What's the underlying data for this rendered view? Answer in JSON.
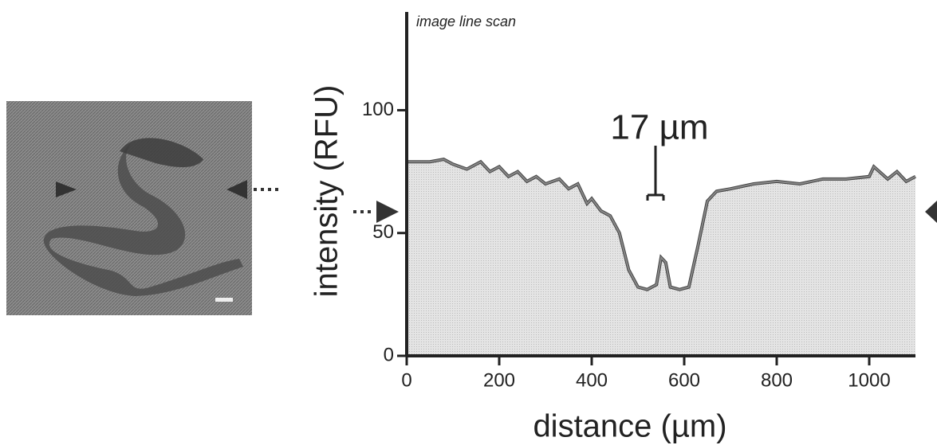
{
  "chart_data": {
    "type": "area",
    "title": "image line scan",
    "annotation": "17 µm",
    "x_label": "distance (µm)",
    "y_label": "intensity (RFU)",
    "x": [
      0,
      50,
      80,
      100,
      130,
      160,
      180,
      200,
      220,
      240,
      260,
      280,
      300,
      330,
      350,
      370,
      390,
      400,
      420,
      440,
      460,
      480,
      500,
      520,
      540,
      550,
      560,
      570,
      590,
      610,
      630,
      650,
      670,
      700,
      750,
      800,
      850,
      900,
      950,
      1000,
      1010,
      1040,
      1060,
      1080,
      1100
    ],
    "values": [
      79,
      79,
      80,
      78,
      76,
      79,
      75,
      77,
      73,
      75,
      71,
      73,
      70,
      72,
      68,
      70,
      62,
      64,
      59,
      57,
      50,
      35,
      28,
      27,
      29,
      40,
      38,
      28,
      27,
      28,
      45,
      63,
      67,
      68,
      70,
      71,
      70,
      72,
      72,
      73,
      77,
      72,
      75,
      71,
      73
    ],
    "color": "#888888",
    "xlim": [
      0,
      1100
    ],
    "ylim": [
      0,
      140
    ],
    "xticks": [
      0,
      200,
      400,
      600,
      800,
      1000
    ],
    "yticks": [
      0,
      50,
      100
    ]
  }
}
